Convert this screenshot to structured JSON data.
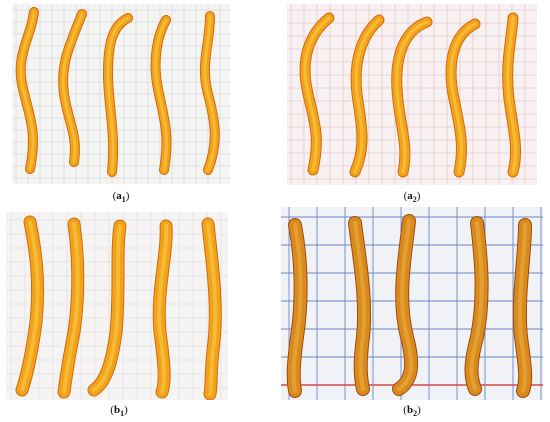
{
  "panels": [
    {
      "id": "a1",
      "caption": "(a1)",
      "grid": "faint",
      "bg": "#f4f4f2"
    },
    {
      "id": "a2",
      "caption": "(a2)",
      "grid": "pink",
      "bg": "#f7f1f1"
    },
    {
      "id": "b1",
      "caption": "(b1)",
      "grid": "faint",
      "bg": "#f6f4f3"
    },
    {
      "id": "b2",
      "caption": "(b2)",
      "grid": "blue",
      "bg": "#f1f2f6"
    }
  ],
  "colors": {
    "dried_fill": "#f2a21a",
    "dried_edge": "#d06a10",
    "dried_light": "#f8c640",
    "rehydrated_fill": "#d88a1c",
    "rehydrated_edge": "#a04810",
    "grid_faint": "#d9dade",
    "grid_pink": "#e7c9cd",
    "grid_blue": "#6c86c8",
    "grid_red": "#d24a4a"
  }
}
